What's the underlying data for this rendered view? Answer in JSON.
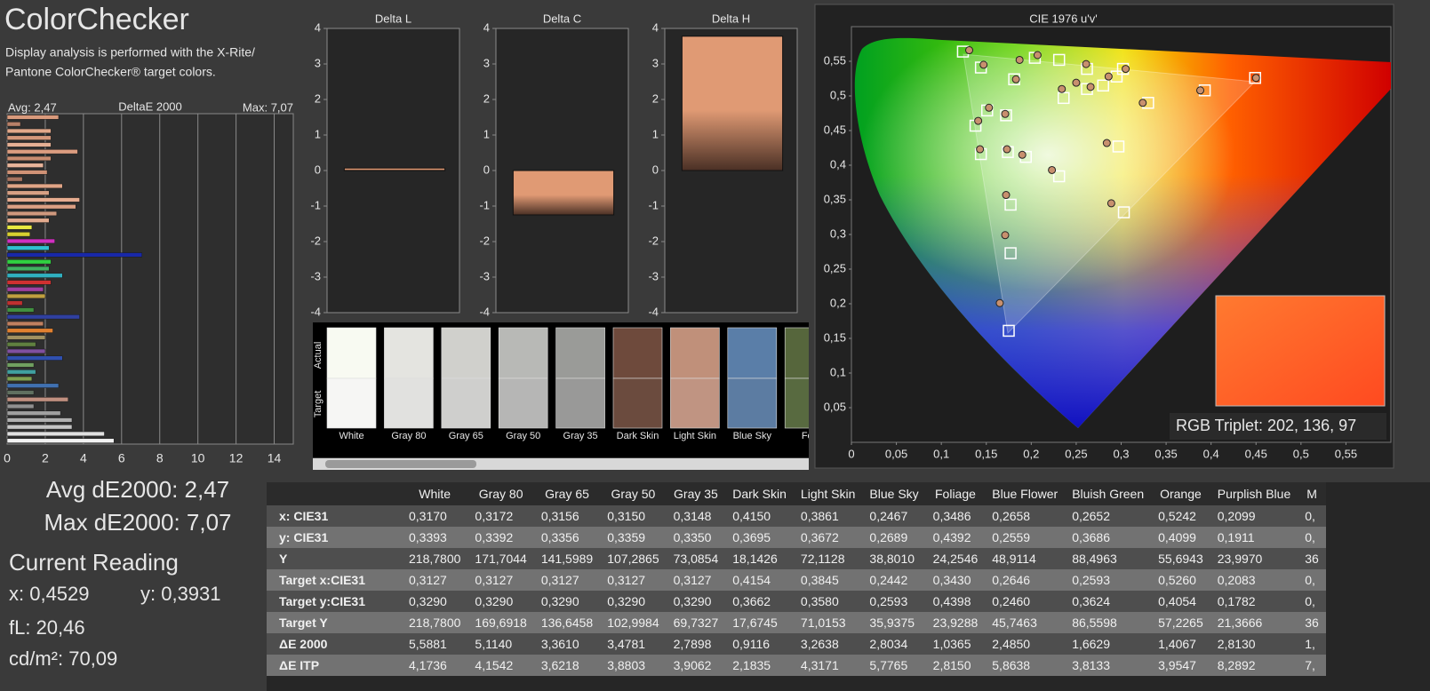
{
  "header": {
    "title": "ColorChecker",
    "description": [
      "Display analysis is performed with the X-Rite/",
      "Pantone ColorChecker® target colors."
    ]
  },
  "chart_data": [
    {
      "type": "bar",
      "orientation": "horizontal",
      "title": "DeltaE 2000",
      "avg_label": "Avg: 2,47",
      "max_label": "Max: 7,07",
      "values": [
        2.7,
        0.7,
        2.3,
        2.3,
        2.3,
        3.7,
        2.3,
        1.9,
        2.1,
        0.8,
        2.9,
        2.2,
        3.8,
        3.6,
        2.6,
        2.2,
        1.3,
        1.2,
        2.5,
        2.2,
        7.07,
        2.3,
        2.2,
        2.9,
        2.3,
        1.9,
        2.0,
        0.8,
        1.4,
        3.8,
        1.9,
        2.4,
        2.0,
        1.5,
        2.0,
        2.9,
        1.4,
        1.5,
        1.3,
        2.7,
        1.4,
        3.2,
        1.4,
        2.8,
        3.4,
        3.4,
        5.1,
        5.6
      ],
      "colors": [
        "#d99a7c",
        "#b88068",
        "#e2a88a",
        "#d4977a",
        "#e6b094",
        "#dc9d80",
        "#c98c70",
        "#e8b49a",
        "#d09276",
        "#a87460",
        "#e0a486",
        "#d8a084",
        "#e6ac90",
        "#dca084",
        "#cf987e",
        "#e2aa8e",
        "#e8e840",
        "#d8d030",
        "#d030c0",
        "#30c0d0",
        "#1828a8",
        "#30d040",
        "#40b060",
        "#30b0c0",
        "#d03030",
        "#a040a0",
        "#c0a040",
        "#c03030",
        "#409040",
        "#3040a0",
        "#c08060",
        "#e08030",
        "#a09060",
        "#608040",
        "#8050a0",
        "#3050b0",
        "#70a060",
        "#40a0a0",
        "#80a050",
        "#4070b0",
        "#607060",
        "#c09080",
        "#909090",
        "#a0a0a0",
        "#b0b0b0",
        "#c4c4c4",
        "#e0e0e0",
        "#f2f2f2"
      ],
      "xlim": [
        0,
        15
      ],
      "xticks": [
        0,
        2,
        4,
        6,
        8,
        10,
        12,
        14
      ],
      "grid": true
    },
    {
      "type": "bar",
      "title": "Delta L",
      "values": [
        0.07
      ],
      "color": "#e09a74",
      "ylim": [
        -4,
        4
      ],
      "yticks": [
        -4,
        -3,
        -2,
        -1,
        0,
        1,
        2,
        3,
        4
      ]
    },
    {
      "type": "bar",
      "title": "Delta C",
      "values": [
        -1.25
      ],
      "color": "#e09a74",
      "ylim": [
        -4,
        4
      ],
      "yticks": [
        -4,
        -3,
        -2,
        -1,
        0,
        1,
        2,
        3,
        4
      ]
    },
    {
      "type": "bar",
      "title": "Delta H",
      "values": [
        3.78
      ],
      "color": "#e09a74",
      "ylim": [
        -4,
        4
      ],
      "yticks": [
        -4,
        -3,
        -2,
        -1,
        0,
        1,
        2,
        3,
        4
      ]
    },
    {
      "type": "scatter",
      "title": "CIE 1976 u'v'",
      "annotation": "RGB Triplet: 202, 136, 97",
      "xlim": [
        0,
        0.6
      ],
      "ylim": [
        0,
        0.6
      ],
      "xticks": [
        0,
        {
          "value": 0.05,
          "label": "0,05"
        },
        {
          "value": 0.1,
          "label": "0,1"
        },
        {
          "value": 0.15,
          "label": "0,15"
        },
        {
          "value": 0.2,
          "label": "0,2"
        },
        {
          "value": 0.25,
          "label": "0,25"
        },
        {
          "value": 0.3,
          "label": "0,3"
        },
        {
          "value": 0.35,
          "label": "0,35"
        },
        {
          "value": 0.4,
          "label": "0,4"
        },
        {
          "value": 0.45,
          "label": "0,45"
        },
        {
          "value": 0.5,
          "label": "0,5"
        },
        {
          "value": 0.55,
          "label": "0,55"
        }
      ],
      "yticks": [
        {
          "value": 0.05,
          "label": "0,05"
        },
        {
          "value": 0.1,
          "label": "0,1"
        },
        {
          "value": 0.15,
          "label": "0,15"
        },
        {
          "value": 0.2,
          "label": "0,2"
        },
        {
          "value": 0.25,
          "label": "0,25"
        },
        {
          "value": 0.3,
          "label": "0,3"
        },
        {
          "value": 0.35,
          "label": "0,35"
        },
        {
          "value": 0.4,
          "label": "0,4"
        },
        {
          "value": 0.45,
          "label": "0,45"
        },
        {
          "value": 0.5,
          "label": "0,5"
        },
        {
          "value": 0.55,
          "label": "0,55"
        }
      ],
      "series": [
        {
          "marker": "square",
          "color": "#ffffff",
          "x": [
            0.124,
            0.144,
            0.181,
            0.204,
            0.231,
            0.262,
            0.302,
            0.295,
            0.449,
            0.393,
            0.33,
            0.236,
            0.262,
            0.28,
            0.151,
            0.138,
            0.172,
            0.144,
            0.174,
            0.194,
            0.231,
            0.297,
            0.177,
            0.303,
            0.177,
            0.175
          ],
          "y": [
            0.564,
            0.541,
            0.524,
            0.555,
            0.552,
            0.539,
            0.539,
            0.528,
            0.526,
            0.508,
            0.49,
            0.497,
            0.51,
            0.515,
            0.479,
            0.457,
            0.472,
            0.416,
            0.419,
            0.412,
            0.384,
            0.427,
            0.343,
            0.332,
            0.273,
            0.161
          ]
        },
        {
          "marker": "circle",
          "color": "#c8906e",
          "x": [
            0.131,
            0.147,
            0.187,
            0.207,
            0.261,
            0.183,
            0.45,
            0.388,
            0.324,
            0.305,
            0.286,
            0.25,
            0.234,
            0.266,
            0.153,
            0.141,
            0.171,
            0.143,
            0.173,
            0.19,
            0.223,
            0.284,
            0.172,
            0.289,
            0.171,
            0.165
          ],
          "y": [
            0.566,
            0.545,
            0.552,
            0.559,
            0.546,
            0.524,
            0.526,
            0.508,
            0.49,
            0.539,
            0.528,
            0.519,
            0.51,
            0.513,
            0.483,
            0.464,
            0.474,
            0.423,
            0.423,
            0.415,
            0.393,
            0.432,
            0.357,
            0.345,
            0.299,
            0.201
          ]
        }
      ]
    }
  ],
  "swatches": {
    "row_labels": [
      "Actual",
      "Target"
    ],
    "items": [
      {
        "name": "White",
        "actual": "#f8faf2",
        "target": "#f6f6f4"
      },
      {
        "name": "Gray 80",
        "actual": "#e4e4e0",
        "target": "#e1e1df"
      },
      {
        "name": "Gray 65",
        "actual": "#d0d0cc",
        "target": "#cfcfcd"
      },
      {
        "name": "Gray 50",
        "actual": "#b8b9b6",
        "target": "#b6b6b5"
      },
      {
        "name": "Gray 35",
        "actual": "#9a9b98",
        "target": "#999998"
      },
      {
        "name": "Dark Skin",
        "actual": "#6e4a3c",
        "target": "#6b4b3e"
      },
      {
        "name": "Light Skin",
        "actual": "#c0907a",
        "target": "#c09482"
      },
      {
        "name": "Blue Sky",
        "actual": "#5a7ea8",
        "target": "#5c7ca2"
      },
      {
        "name": "Foli",
        "actual": "#56663c",
        "target": "#586a40"
      }
    ]
  },
  "readings": {
    "avg": "Avg dE2000: 2,47",
    "max": "Max dE2000: 7,07",
    "heading": "Current Reading",
    "x": "x: 0,4529",
    "y": "y: 0,3931",
    "fl": "fL: 20,46",
    "cdm2": "cd/m²: 70,09"
  },
  "table": {
    "columns": [
      "White",
      "Gray 80",
      "Gray 65",
      "Gray 50",
      "Gray 35",
      "Dark Skin",
      "Light Skin",
      "Blue Sky",
      "Foliage",
      "Blue Flower",
      "Bluish Green",
      "Orange",
      "Purplish Blue",
      "M"
    ],
    "rows": [
      {
        "label": "x: CIE31",
        "cells": [
          "0,3170",
          "0,3172",
          "0,3156",
          "0,3150",
          "0,3148",
          "0,4150",
          "0,3861",
          "0,2467",
          "0,3486",
          "0,2658",
          "0,2652",
          "0,5242",
          "0,2099",
          "0,"
        ]
      },
      {
        "label": "y: CIE31",
        "cells": [
          "0,3393",
          "0,3392",
          "0,3356",
          "0,3359",
          "0,3350",
          "0,3695",
          "0,3672",
          "0,2689",
          "0,4392",
          "0,2559",
          "0,3686",
          "0,4099",
          "0,1911",
          "0,"
        ]
      },
      {
        "label": "Y",
        "cells": [
          "218,7800",
          "171,7044",
          "141,5989",
          "107,2865",
          "73,0854",
          "18,1426",
          "72,1128",
          "38,8010",
          "24,2546",
          "48,9114",
          "88,4963",
          "55,6943",
          "23,9970",
          "36"
        ]
      },
      {
        "label": "Target x:CIE31",
        "cells": [
          "0,3127",
          "0,3127",
          "0,3127",
          "0,3127",
          "0,3127",
          "0,4154",
          "0,3845",
          "0,2442",
          "0,3430",
          "0,2646",
          "0,2593",
          "0,5260",
          "0,2083",
          "0,"
        ]
      },
      {
        "label": "Target y:CIE31",
        "cells": [
          "0,3290",
          "0,3290",
          "0,3290",
          "0,3290",
          "0,3290",
          "0,3662",
          "0,3580",
          "0,2593",
          "0,4398",
          "0,2460",
          "0,3624",
          "0,4054",
          "0,1782",
          "0,"
        ]
      },
      {
        "label": "Target Y",
        "cells": [
          "218,7800",
          "169,6918",
          "136,6458",
          "102,9984",
          "69,7327",
          "17,6745",
          "71,0153",
          "35,9375",
          "23,9288",
          "45,7463",
          "86,5598",
          "57,2265",
          "21,3666",
          "36"
        ]
      },
      {
        "label": "ΔE 2000",
        "cells": [
          "5,5881",
          "5,1140",
          "3,3610",
          "3,4781",
          "2,7898",
          "0,9116",
          "3,2638",
          "2,8034",
          "1,0365",
          "2,4850",
          "1,6629",
          "1,4067",
          "2,8130",
          "1,"
        ]
      },
      {
        "label": "ΔE ITP",
        "cells": [
          "4,1736",
          "4,1542",
          "3,6218",
          "3,8803",
          "3,9062",
          "2,1835",
          "4,3171",
          "5,7765",
          "2,8150",
          "5,8638",
          "3,8133",
          "3,9547",
          "8,2892",
          "7,"
        ]
      }
    ]
  }
}
